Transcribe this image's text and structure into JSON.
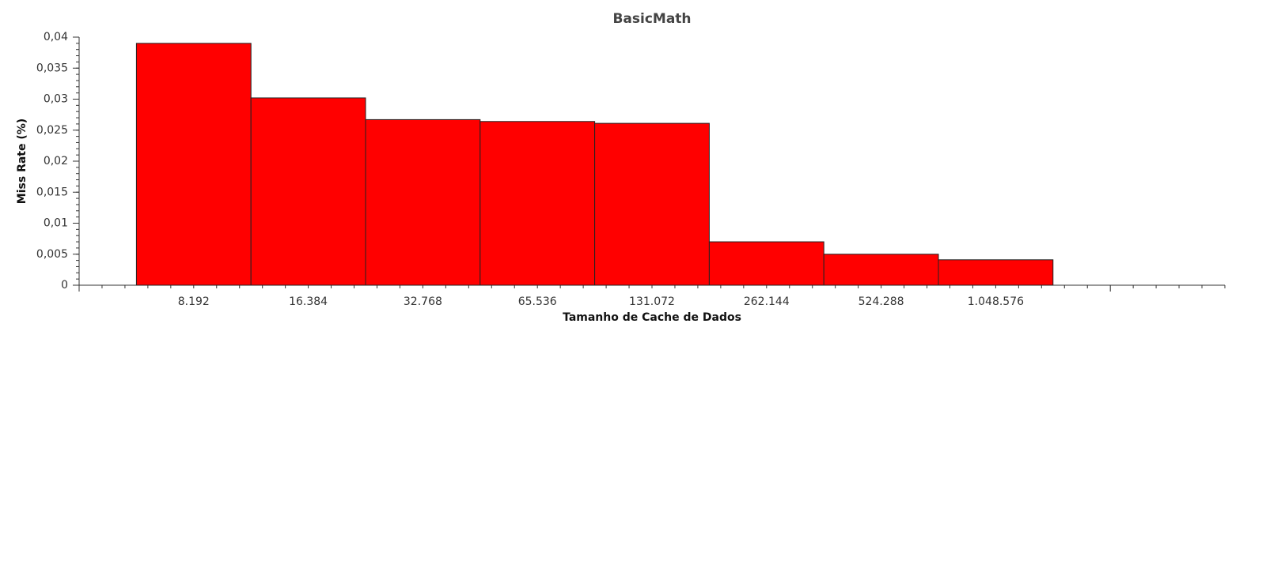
{
  "chart_data": {
    "type": "bar",
    "title": "BasicMath",
    "x_label": "Tamanho de Cache de Dados",
    "y_label": "Miss Rate (%)",
    "categories": [
      "8.192",
      "16.384",
      "32.768",
      "65.536",
      "131.072",
      "262.144",
      "524.288",
      "1.048.576"
    ],
    "values": [
      0.039,
      0.0302,
      0.0267,
      0.0264,
      0.0261,
      0.007,
      0.005,
      0.0041
    ],
    "color": "#ff0000",
    "ylim": [
      0,
      0.04
    ],
    "yticks": [
      0,
      {
        "value": 0.005,
        "label": "0,005"
      },
      {
        "value": 0.01,
        "label": "0,01"
      },
      {
        "value": 0.015,
        "label": "0,015"
      },
      {
        "value": 0.02,
        "label": "0,02"
      },
      {
        "value": 0.025,
        "label": "0,025"
      },
      {
        "value": 0.03,
        "label": "0,03"
      },
      {
        "value": 0.035,
        "label": "0,035"
      },
      {
        "value": 0.04,
        "label": "0,04"
      }
    ],
    "grid": false
  }
}
